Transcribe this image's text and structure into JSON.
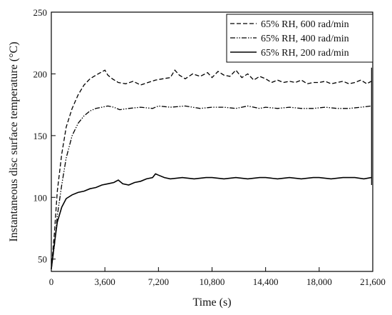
{
  "chart_data": {
    "type": "line",
    "title": "",
    "xlabel": "Time (s)",
    "ylabel": "Instantaneous disc surface temperature (°C)",
    "xlim": [
      0,
      21600
    ],
    "ylim": [
      40,
      250
    ],
    "xticks": [
      0,
      3600,
      7200,
      10800,
      14400,
      18000,
      21600
    ],
    "xtick_labels": [
      "0",
      "3,600",
      "7,200",
      "10,800",
      "14,400",
      "18,000",
      "21,600"
    ],
    "yticks": [
      50,
      100,
      150,
      200,
      250
    ],
    "ytick_labels": [
      "50",
      "100",
      "150",
      "200",
      "250"
    ],
    "grid": false,
    "legend_position": "top-right",
    "series": [
      {
        "name": "65% RH, 600 rad/min",
        "style": "dashed",
        "x": [
          0,
          200,
          400,
          700,
          1000,
          1400,
          1800,
          2200,
          2600,
          3000,
          3300,
          3600,
          3800,
          4100,
          4500,
          5000,
          5500,
          6000,
          6500,
          7000,
          7500,
          8000,
          8300,
          8600,
          9000,
          9500,
          10000,
          10500,
          10800,
          11200,
          11600,
          12000,
          12400,
          12800,
          13200,
          13600,
          14000,
          14400,
          14800,
          15200,
          15600,
          16000,
          16400,
          16800,
          17200,
          17600,
          18000,
          18400,
          18800,
          19200,
          19600,
          20000,
          20400,
          20800,
          21200,
          21500
        ],
        "y": [
          42,
          70,
          105,
          135,
          157,
          172,
          183,
          191,
          196,
          199,
          201,
          203,
          199,
          196,
          193,
          192,
          194,
          191,
          193,
          195,
          196,
          197,
          203,
          199,
          196,
          200,
          198,
          201,
          197,
          202,
          199,
          198,
          203,
          197,
          200,
          195,
          198,
          196,
          193,
          195,
          193,
          194,
          193,
          195,
          192,
          193,
          193,
          194,
          192,
          193,
          194,
          192,
          193,
          195,
          192,
          194
        ]
      },
      {
        "name": "65% RH, 400 rad/min",
        "style": "dash-dot-dot",
        "x": [
          0,
          200,
          400,
          700,
          1000,
          1400,
          1800,
          2200,
          2600,
          3000,
          3400,
          3800,
          4200,
          4600,
          5200,
          6000,
          6800,
          7200,
          8000,
          9000,
          10000,
          10800,
          11600,
          12400,
          13200,
          14000,
          14400,
          15200,
          16000,
          16800,
          17600,
          18400,
          19200,
          20000,
          20800,
          21500
        ],
        "y": [
          42,
          60,
          85,
          110,
          132,
          150,
          160,
          166,
          170,
          172,
          173,
          174,
          173,
          171,
          172,
          173,
          172,
          174,
          173,
          174,
          172,
          173,
          173,
          172,
          174,
          172,
          173,
          172,
          173,
          172,
          172,
          173,
          172,
          172,
          173,
          174
        ]
      },
      {
        "name": "65% RH, 200 rad/min",
        "style": "solid",
        "x": [
          0,
          200,
          400,
          700,
          1000,
          1400,
          1800,
          2200,
          2600,
          3000,
          3400,
          3800,
          4200,
          4500,
          4800,
          5200,
          5600,
          6000,
          6400,
          6800,
          7000,
          7200,
          7600,
          8000,
          8800,
          9600,
          10400,
          10800,
          11600,
          12400,
          13200,
          14000,
          14400,
          15200,
          16000,
          16800,
          17600,
          18000,
          18800,
          19600,
          20400,
          21000,
          21500
        ],
        "y": [
          42,
          62,
          80,
          92,
          99,
          102,
          104,
          105,
          107,
          108,
          110,
          111,
          112,
          114,
          111,
          110,
          112,
          113,
          115,
          116,
          119,
          118,
          116,
          115,
          116,
          115,
          116,
          116,
          115,
          116,
          115,
          116,
          116,
          115,
          116,
          115,
          116,
          116,
          115,
          116,
          116,
          115,
          116
        ]
      }
    ]
  }
}
